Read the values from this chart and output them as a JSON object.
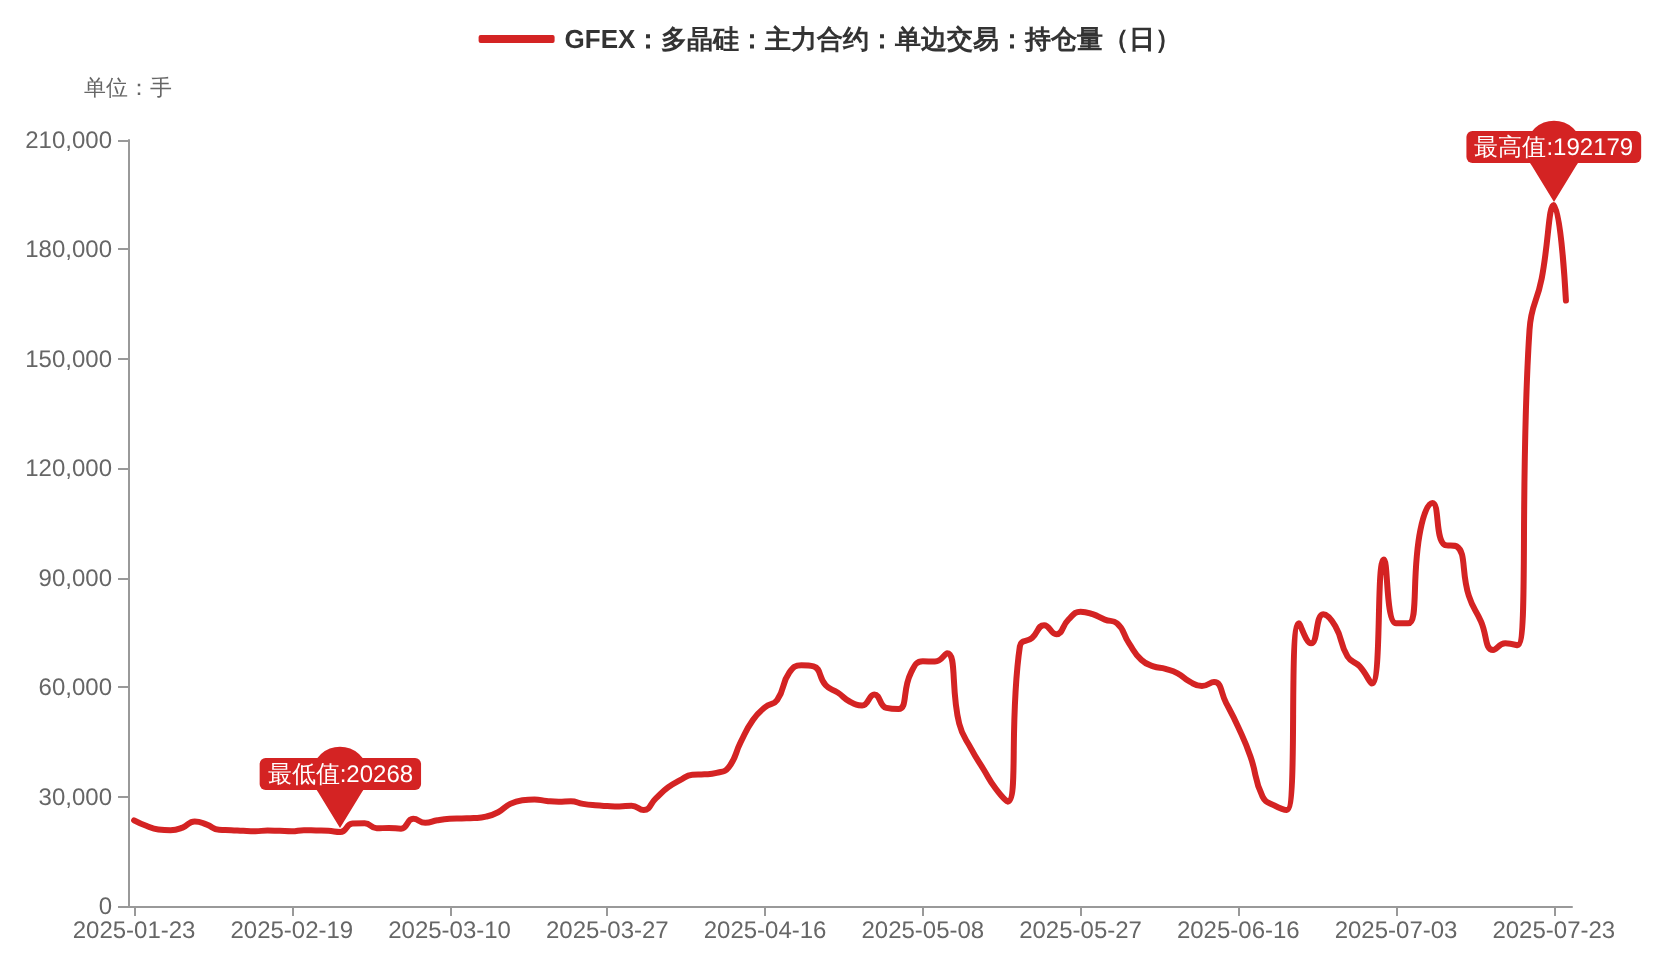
{
  "chart_data": {
    "type": "line",
    "ylabel": "单位：手",
    "categories": [
      "2025-01-23",
      null,
      null,
      null,
      null,
      null,
      null,
      null,
      null,
      null,
      null,
      null,
      null,
      "2025-02-19",
      null,
      null,
      null,
      null,
      null,
      null,
      null,
      null,
      null,
      null,
      null,
      null,
      "2025-03-10",
      null,
      null,
      null,
      null,
      null,
      null,
      null,
      null,
      null,
      null,
      null,
      null,
      "2025-03-27",
      null,
      null,
      null,
      null,
      null,
      null,
      null,
      null,
      null,
      null,
      null,
      null,
      "2025-04-16",
      null,
      null,
      null,
      null,
      null,
      null,
      null,
      null,
      null,
      null,
      null,
      null,
      "2025-05-08",
      null,
      null,
      null,
      null,
      null,
      null,
      null,
      null,
      null,
      null,
      null,
      null,
      "2025-05-27",
      null,
      null,
      null,
      null,
      null,
      null,
      null,
      null,
      null,
      null,
      null,
      null,
      "2025-06-16",
      null,
      null,
      null,
      null,
      null,
      null,
      null,
      null,
      null,
      null,
      null,
      null,
      "2025-07-03",
      null,
      null,
      null,
      null,
      null,
      null,
      null,
      null,
      null,
      null,
      null,
      null,
      "2025-07-23",
      null
    ],
    "series": [
      {
        "name": "GFEX：多晶硅：主力合约：单边交易：持仓量（日）",
        "color": "#d42323",
        "values": [
          23500,
          22000,
          21000,
          20800,
          21500,
          23200,
          22300,
          20900,
          20800,
          20600,
          20500,
          20700,
          20600,
          20500,
          20800,
          20700,
          20600,
          20268,
          22600,
          22700,
          21300,
          21400,
          21200,
          23900,
          22800,
          23500,
          23900,
          24000,
          24100,
          24500,
          25700,
          28000,
          29000,
          29200,
          28800,
          28600,
          28700,
          28000,
          27600,
          27400,
          27300,
          27500,
          26300,
          29500,
          32500,
          34500,
          36000,
          36100,
          36500,
          38000,
          45000,
          51000,
          54500,
          56500,
          64000,
          66000,
          65700,
          60500,
          58500,
          56000,
          55000,
          58000,
          54300,
          54000,
          63800,
          67100,
          67000,
          69300,
          50000,
          43000,
          37500,
          32200,
          28600,
          71200,
          73500,
          77000,
          74500,
          78500,
          80700,
          80000,
          78500,
          77500,
          72000,
          67500,
          65700,
          65000,
          63800,
          61500,
          60300,
          61400,
          55600,
          49000,
          41000,
          30000,
          27500,
          26300,
          77500,
          72000,
          80000,
          76700,
          68400,
          65700,
          61000,
          95000,
          77500,
          77500,
          103000,
          110500,
          99000,
          98600,
          85000,
          78000,
          70200,
          72000,
          71500,
          158000,
          172000,
          192179,
          166000
        ]
      }
    ],
    "ylim": [
      0,
      210000
    ],
    "yticks": [
      0,
      {
        "value": 30000,
        "label": "30,000"
      },
      {
        "value": 60000,
        "label": "60,000"
      },
      {
        "value": 90000,
        "label": "90,000"
      },
      {
        "value": 120000,
        "label": "120,000"
      },
      {
        "value": 150000,
        "label": "150,000"
      },
      {
        "value": 180000,
        "label": "180,000"
      },
      {
        "value": 210000,
        "label": "210,000"
      }
    ],
    "grid": false,
    "legend": "top",
    "marker": "none",
    "line_style": "solid",
    "annotations": [
      {
        "text": "最高值:192179",
        "x": "2025-07-23",
        "y": 192179
      },
      {
        "text": "最低值:20268",
        "y": 20268
      }
    ]
  }
}
